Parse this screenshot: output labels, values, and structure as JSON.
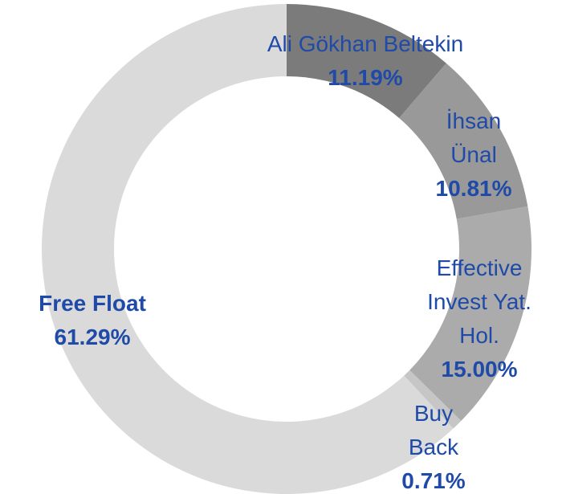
{
  "chart_data": {
    "type": "donut",
    "categories": [
      "Ali Gökhan Beltekin",
      "İhsan Ünal",
      "Effective Invest Yat. Hol.",
      "Buy Back",
      "Free Float"
    ],
    "values": [
      11.19,
      10.81,
      15.0,
      0.71,
      61.29
    ],
    "value_labels": [
      "11.19%",
      "10.81%",
      "15.00%",
      "0.71%",
      "61.29%"
    ],
    "colors": [
      "#7b7b7b",
      "#999999",
      "#ababab",
      "#c6c6c6",
      "#dadada"
    ]
  }
}
